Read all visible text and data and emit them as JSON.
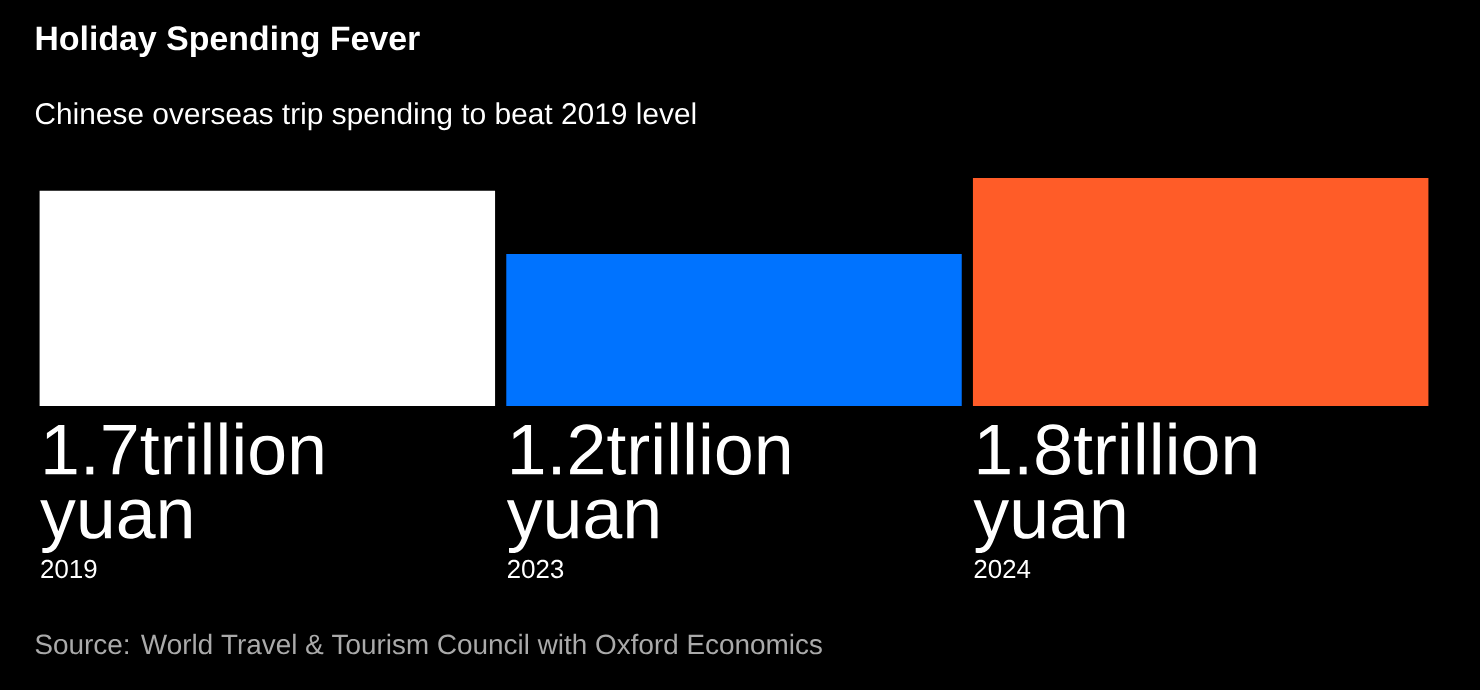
{
  "chart_data": {
    "type": "bar",
    "title": "Holiday Spending Fever",
    "subtitle": "Chinese overseas trip spending to beat 2019 level",
    "categories": [
      "2019",
      "2023",
      "2024"
    ],
    "values": [
      1.7,
      1.2,
      1.8
    ],
    "colors": [
      "#ffffff",
      "#0073ff",
      "#ff5c28"
    ],
    "value_labels": [
      "1.7trillion yuan",
      "1.2trillion yuan",
      "1.8trillion yuan"
    ],
    "annotations": [
      "Source: World Travel & Tourism Council with Oxford Economics"
    ]
  }
}
